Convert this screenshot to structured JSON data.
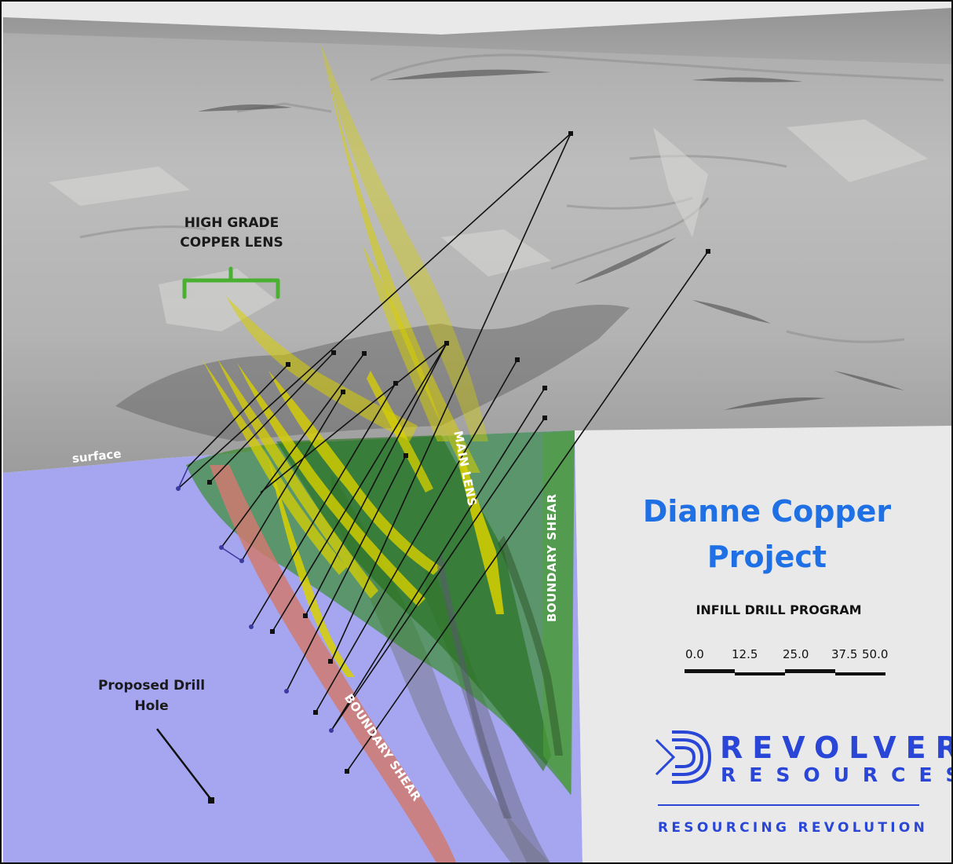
{
  "annotations": {
    "high_grade_line1": "HIGH GRADE",
    "high_grade_line2": "COPPER LENS",
    "surface": "surface",
    "main_lens": "MAIN LENS",
    "boundary_shear_right": "BOUNDARY SHEAR",
    "boundary_shear_left": "BOUNDARY SHEAR",
    "proposed_line1": "Proposed Drill",
    "proposed_line2": "Hole"
  },
  "title": {
    "line1": "Dianne Copper",
    "line2": "Project"
  },
  "subtitle": "INFILL DRILL PROGRAM",
  "scale_bar": {
    "ticks": [
      "0.0",
      "12.5",
      "25.0",
      "37.5",
      "50.0"
    ]
  },
  "brand": {
    "name1": "REVOLVER",
    "name2": "RESOURCES",
    "tagline": "RESOURCING REVOLUTION"
  },
  "colors": {
    "title": "#1f6fe5",
    "brand": "#2a46d6",
    "below_surface": "#a6a6f0",
    "green_zone": "#2c8a1c",
    "yellow_lens": "#d8d000",
    "boundary_shear": "#d07a70",
    "bracket": "#4ab032"
  }
}
